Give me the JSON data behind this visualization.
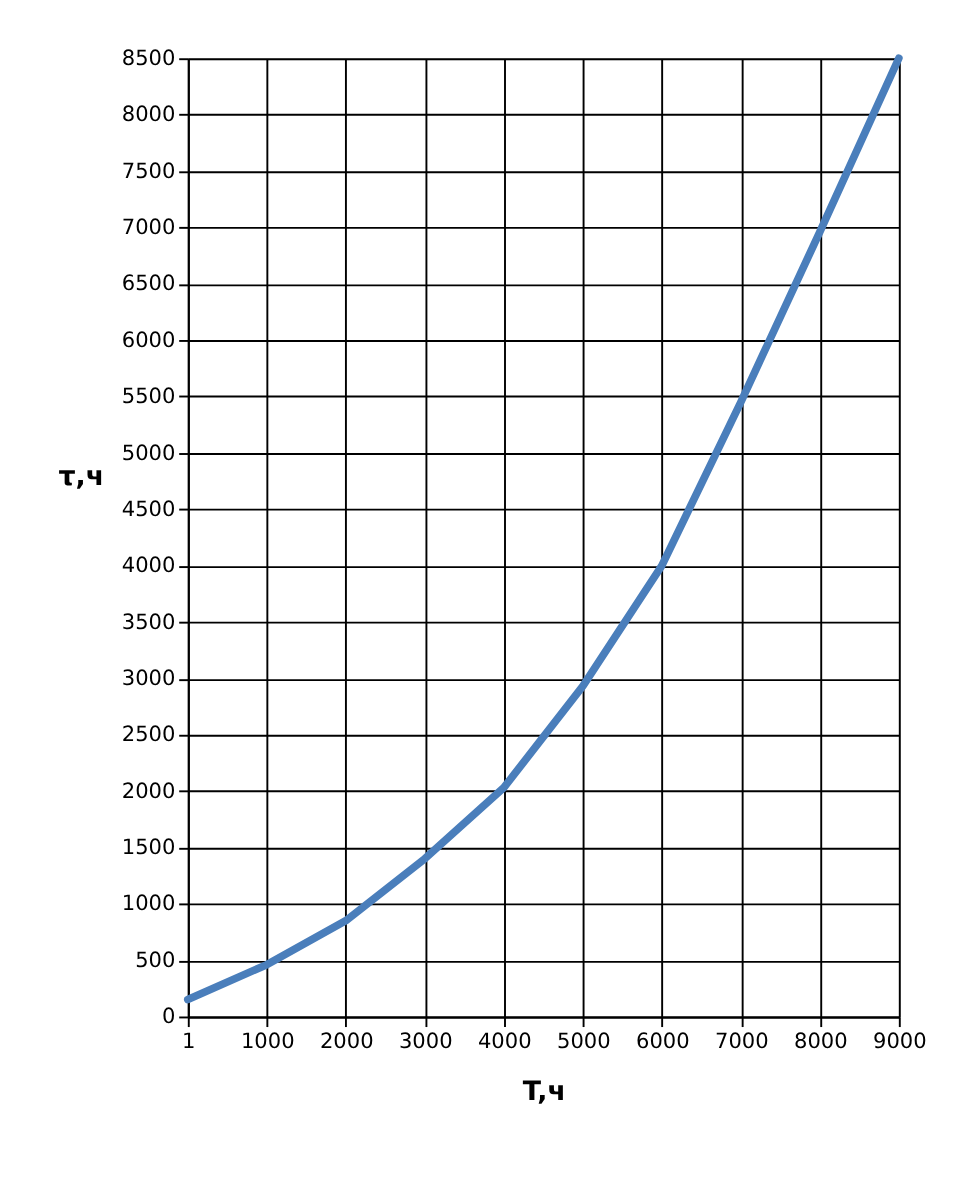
{
  "chart_data": {
    "type": "line",
    "xlabel": "T,ч",
    "ylabel": "τ,ч",
    "categories": [
      "1",
      "1000",
      "2000",
      "3000",
      "4000",
      "5000",
      "6000",
      "7000",
      "8000",
      "9000"
    ],
    "series": [
      {
        "color": "#4a7ebb",
        "values": [
          150,
          460,
          850,
          1400,
          2030,
          2930,
          4000,
          5450,
          6960,
          8500
        ]
      }
    ],
    "ylim": [
      0,
      8500
    ],
    "yticks": [
      0,
      500,
      1000,
      1500,
      2000,
      2500,
      3000,
      3500,
      4000,
      4500,
      5000,
      5500,
      6000,
      6500,
      7000,
      7500,
      8000,
      8500
    ],
    "grid": true,
    "marker": "none",
    "line_style": "solid"
  }
}
